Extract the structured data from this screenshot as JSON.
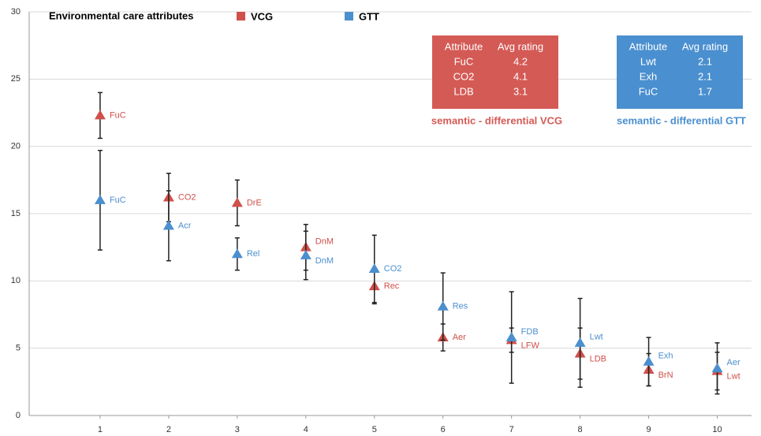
{
  "chart_data": {
    "type": "scatter",
    "title": "Environmental care attributes",
    "x": [
      1,
      2,
      3,
      4,
      5,
      6,
      7,
      8,
      9,
      10
    ],
    "xlim": [
      0,
      10.5
    ],
    "xticks": [
      1,
      2,
      3,
      4,
      5,
      6,
      7,
      8,
      9,
      10
    ],
    "ylim": [
      0,
      30
    ],
    "yticks": [
      0,
      5,
      10,
      15,
      20,
      25,
      30
    ],
    "grid": true,
    "series": [
      {
        "name": "VCG",
        "color": "#d0504a",
        "values": [
          22.3,
          16.2,
          15.8,
          12.5,
          9.6,
          5.8,
          5.6,
          4.6,
          3.4,
          3.3
        ],
        "errors": [
          1.7,
          1.8,
          1.7,
          1.7,
          1.3,
          1.0,
          0.9,
          1.9,
          1.2,
          1.4
        ],
        "point_labels": [
          "FuC",
          "CO2",
          "DrE",
          "DnM",
          "Rec",
          "Aer",
          "LFW",
          "LDB",
          "BrN",
          "Lwt"
        ]
      },
      {
        "name": "GTT",
        "color": "#4b8fce",
        "values": [
          16.0,
          14.1,
          12.0,
          11.9,
          10.9,
          8.1,
          5.8,
          5.4,
          4.0,
          3.5
        ],
        "errors": [
          3.7,
          2.6,
          1.2,
          1.8,
          2.5,
          2.5,
          3.4,
          3.3,
          1.8,
          1.9
        ],
        "point_labels": [
          "FuC",
          "Acr",
          "Rel",
          "DnM",
          "CO2",
          "Res",
          "FDB",
          "Lwt",
          "Exh",
          "Aer"
        ]
      }
    ],
    "tables": [
      {
        "color": "#d45a55",
        "caption": "semantic - differential VCG",
        "columns": [
          "Attribute",
          "Avg rating"
        ],
        "rows": [
          [
            "FuC",
            4.2
          ],
          [
            "CO2",
            4.1
          ],
          [
            "LDB",
            3.1
          ]
        ]
      },
      {
        "color": "#4a8fcf",
        "caption": "semantic - differential GTT",
        "columns": [
          "Attribute",
          "Avg rating"
        ],
        "rows": [
          [
            "Lwt",
            2.1
          ],
          [
            "Exh",
            2.1
          ],
          [
            "FuC",
            1.7
          ]
        ]
      }
    ]
  }
}
